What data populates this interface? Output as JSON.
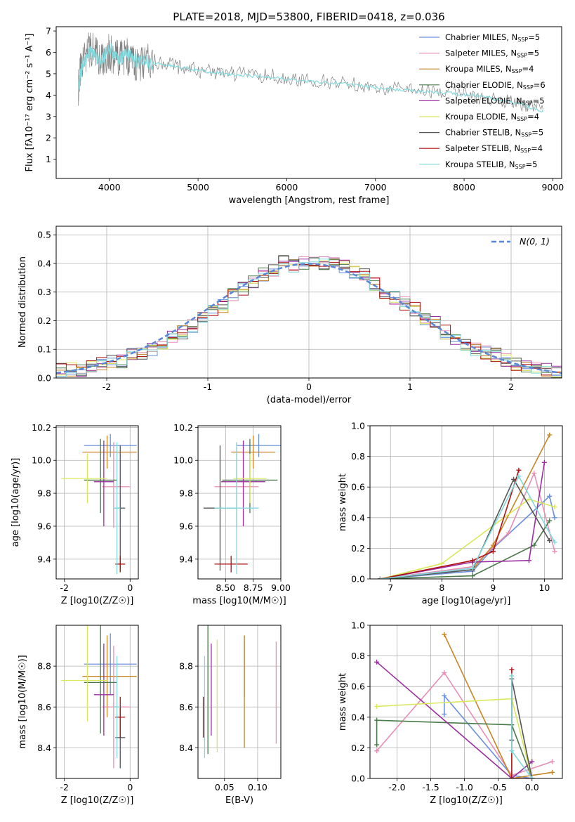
{
  "figure": {
    "title": "PLATE=2018, MJD=53800, FIBERID=0418, z=0.036"
  },
  "legend": {
    "spectrum": [
      {
        "label": "Chabrier MILES, N",
        "sub": "SSP",
        "tail": "=5",
        "color": "#6a8fdc"
      },
      {
        "label": "Salpeter MILES, N",
        "sub": "SSP",
        "tail": "=5",
        "color": "#e88fb5"
      },
      {
        "label": "Kroupa MILES, N",
        "sub": "SSP",
        "tail": "=4",
        "color": "#c58525"
      },
      {
        "label": "Chabrier ELODIE, N",
        "sub": "SSP",
        "tail": "=6",
        "color": "#4a7a4a"
      },
      {
        "label": "Salpeter ELODIE, N",
        "sub": "SSP",
        "tail": "=5",
        "color": "#9a2fa0"
      },
      {
        "label": "Kroupa ELODIE, N",
        "sub": "SSP",
        "tail": "=4",
        "color": "#d9e85a"
      },
      {
        "label": "Chabrier STELIB, N",
        "sub": "SSP",
        "tail": "=5",
        "color": "#555555"
      },
      {
        "label": "Salpeter STELIB, N",
        "sub": "SSP",
        "tail": "=4",
        "color": "#b01010"
      },
      {
        "label": "Kroupa STELIB, N",
        "sub": "SSP",
        "tail": "=5",
        "color": "#7fd8dc"
      }
    ],
    "residual": "N(0, 1)"
  },
  "chart_data": [
    {
      "id": "spectrum",
      "type": "line",
      "xlabel": "wavelength [Angstrom, rest frame]",
      "ylabel": "Flux [fλ10⁻¹⁷ erg cm⁻² s⁻¹ A⁻¹]",
      "xlim": [
        3400,
        9100
      ],
      "ylim": [
        0.1,
        7.2
      ],
      "xticks": [
        4000,
        5000,
        6000,
        7000,
        8000,
        9000
      ],
      "yticks": [
        1,
        2,
        3,
        4,
        5,
        6,
        7
      ],
      "grid": false,
      "legend_position": "top-right",
      "series": [
        {
          "role": "observed",
          "color": "#808080",
          "x": [
            3650,
            3700,
            3800,
            3900,
            4000,
            4100,
            4200,
            4300,
            4500,
            4800,
            5100,
            5400,
            5800,
            6200,
            6600,
            7000,
            7400,
            7800,
            8200,
            8600,
            8900
          ],
          "y": [
            4.4,
            5.8,
            6.2,
            5.6,
            6.0,
            5.7,
            5.8,
            5.4,
            5.6,
            5.3,
            5.1,
            5.0,
            4.9,
            4.7,
            4.6,
            4.4,
            4.2,
            4.1,
            3.9,
            3.6,
            3.3
          ]
        },
        {
          "role": "model",
          "color": "#7fd8dc",
          "x": [
            3650,
            3700,
            3800,
            3900,
            4000,
            4100,
            4200,
            4300,
            4500,
            4800,
            5100,
            5400,
            5800,
            6200,
            6600,
            7000,
            7400,
            7800,
            8200,
            8600,
            8900
          ],
          "y": [
            4.4,
            5.5,
            6.1,
            5.5,
            6.3,
            5.6,
            5.9,
            5.6,
            5.5,
            5.3,
            5.1,
            4.95,
            4.85,
            4.65,
            4.55,
            4.35,
            4.2,
            4.1,
            3.95,
            3.6,
            3.25
          ]
        }
      ]
    },
    {
      "id": "residual",
      "type": "line",
      "xlabel": "(data-model)/error",
      "ylabel": "Normed distribution",
      "xlim": [
        -2.5,
        2.5
      ],
      "ylim": [
        0,
        0.53
      ],
      "xticks": [
        -2,
        -1,
        0,
        1,
        2
      ],
      "yticks": [
        0.0,
        0.1,
        0.2,
        0.3,
        0.4,
        0.5
      ],
      "grid": true,
      "legend_position": "top-right",
      "histogram_bins": [
        -2.5,
        -2.4,
        -2.3,
        -2.2,
        -2.1,
        -2.0,
        -1.9,
        -1.8,
        -1.7,
        -1.6,
        -1.5,
        -1.4,
        -1.3,
        -1.2,
        -1.1,
        -1.0,
        -0.9,
        -0.8,
        -0.7,
        -0.6,
        -0.5,
        -0.4,
        -0.3,
        -0.2,
        -0.1,
        0.0,
        0.1,
        0.2,
        0.3,
        0.4,
        0.5,
        0.6,
        0.7,
        0.8,
        0.9,
        1.0,
        1.1,
        1.2,
        1.3,
        1.4,
        1.5,
        1.6,
        1.7,
        1.8,
        1.9,
        2.0,
        2.1,
        2.2,
        2.3,
        2.4
      ],
      "histogram_values": [
        0.03,
        0.03,
        0.03,
        0.04,
        0.05,
        0.06,
        0.06,
        0.08,
        0.09,
        0.1,
        0.12,
        0.14,
        0.16,
        0.18,
        0.21,
        0.23,
        0.25,
        0.29,
        0.31,
        0.34,
        0.36,
        0.38,
        0.41,
        0.39,
        0.4,
        0.41,
        0.4,
        0.4,
        0.39,
        0.37,
        0.36,
        0.33,
        0.3,
        0.28,
        0.26,
        0.24,
        0.21,
        0.19,
        0.16,
        0.14,
        0.12,
        0.1,
        0.09,
        0.08,
        0.06,
        0.05,
        0.04,
        0.03,
        0.03,
        0.02
      ],
      "gaussian": {
        "mean": 0,
        "sigma": 1
      }
    },
    {
      "id": "age-vs-Z",
      "type": "scatter",
      "xlabel": "Z [log10(Z/Z☉)]",
      "ylabel": "age [log10(age/yr)]",
      "xlim": [
        -2.25,
        0.25
      ],
      "ylim": [
        9.28,
        10.21
      ],
      "xticks": [
        -2,
        0
      ],
      "yticks": [
        9.4,
        9.6,
        9.8,
        10.0,
        10.2
      ],
      "grid": true,
      "points": [
        {
          "color": "#6a8fdc",
          "x": -0.6,
          "xerr": [
            0.8,
            0.8
          ],
          "y": 10.09,
          "yerr": [
            0.07,
            0.07
          ]
        },
        {
          "color": "#c58525",
          "x": -0.7,
          "xerr": [
            0.75,
            0.9
          ],
          "y": 10.05,
          "yerr": [
            0.1,
            0.1
          ]
        },
        {
          "color": "#e88fb5",
          "x": -0.5,
          "xerr": [
            0.35,
            0.5
          ],
          "y": 9.84,
          "yerr": [
            0.25,
            0.27
          ]
        },
        {
          "color": "#4a7a4a",
          "x": -0.9,
          "xerr": [
            0.5,
            0.5
          ],
          "y": 9.88,
          "yerr": [
            0.2,
            0.25
          ]
        },
        {
          "color": "#9a2fa0",
          "x": -0.8,
          "xerr": [
            0.3,
            0.3
          ],
          "y": 9.87,
          "yerr": [
            0.27,
            0.25
          ]
        },
        {
          "color": "#d9e85a",
          "x": -1.3,
          "xerr": [
            0.8,
            0.6
          ],
          "y": 9.89,
          "yerr": [
            0.15,
            0.15
          ]
        },
        {
          "color": "#555555",
          "x": -0.3,
          "xerr": [
            0.15,
            0.15
          ],
          "y": 9.71,
          "yerr": [
            0.38,
            0.38
          ]
        },
        {
          "color": "#b01010",
          "x": -0.3,
          "xerr": [
            0.15,
            0.15
          ],
          "y": 9.37,
          "yerr": [
            0.05,
            0.05
          ]
        },
        {
          "color": "#7fd8dc",
          "x": -0.4,
          "xerr": [
            0.1,
            0.1
          ],
          "y": 9.71,
          "yerr": [
            0.4,
            0.4
          ]
        }
      ]
    },
    {
      "id": "age-vs-mass",
      "type": "scatter",
      "xlabel": "mass [log10(M/M☉)]",
      "ylabel": "",
      "xlim": [
        8.25,
        9.0
      ],
      "ylim": [
        9.28,
        10.21
      ],
      "xticks": [
        8.5,
        8.75,
        9.0
      ],
      "yticks": [
        9.4,
        9.6,
        9.8,
        10.0,
        10.2
      ],
      "grid": true,
      "points": [
        {
          "color": "#6a8fdc",
          "x": 8.8,
          "xerr": [
            0.2,
            0.2
          ],
          "y": 10.09,
          "yerr": [
            0.07,
            0.07
          ]
        },
        {
          "color": "#c58525",
          "x": 8.75,
          "xerr": [
            0.2,
            0.2
          ],
          "y": 10.05,
          "yerr": [
            0.1,
            0.1
          ]
        },
        {
          "color": "#e88fb5",
          "x": 8.6,
          "xerr": [
            0.2,
            0.2
          ],
          "y": 9.84,
          "yerr": [
            0.25,
            0.27
          ]
        },
        {
          "color": "#4a7a4a",
          "x": 8.72,
          "xerr": [
            0.25,
            0.25
          ],
          "y": 9.88,
          "yerr": [
            0.2,
            0.25
          ]
        },
        {
          "color": "#9a2fa0",
          "x": 8.66,
          "xerr": [
            0.2,
            0.2
          ],
          "y": 9.87,
          "yerr": [
            0.27,
            0.25
          ]
        },
        {
          "color": "#d9e85a",
          "x": 8.72,
          "xerr": [
            0.15,
            0.15
          ],
          "y": 9.89,
          "yerr": [
            0.15,
            0.15
          ]
        },
        {
          "color": "#555555",
          "x": 8.45,
          "xerr": [
            0.15,
            0.15
          ],
          "y": 9.71,
          "yerr": [
            0.38,
            0.38
          ]
        },
        {
          "color": "#b01010",
          "x": 8.55,
          "xerr": [
            0.15,
            0.15
          ],
          "y": 9.37,
          "yerr": [
            0.05,
            0.05
          ]
        },
        {
          "color": "#7fd8dc",
          "x": 8.6,
          "xerr": [
            0.2,
            0.2
          ],
          "y": 9.71,
          "yerr": [
            0.4,
            0.4
          ]
        }
      ]
    },
    {
      "id": "weight-vs-age",
      "type": "line",
      "xlabel": "age [log10(age/yr)]",
      "ylabel": "mass weight",
      "xlim": [
        6.6,
        10.35
      ],
      "ylim": [
        0,
        1.0
      ],
      "xticks": [
        7,
        8,
        9,
        10
      ],
      "yticks": [
        0.0,
        0.2,
        0.4,
        0.6,
        0.8,
        1.0
      ],
      "grid": true,
      "series": [
        {
          "color": "#6a8fdc",
          "x": [
            6.8,
            8.6,
            9.0,
            10.1,
            10.2
          ],
          "y": [
            0.0,
            0.05,
            0.2,
            0.54,
            0.4
          ]
        },
        {
          "color": "#e88fb5",
          "x": [
            6.8,
            8.6,
            9.3,
            9.8,
            10.2
          ],
          "y": [
            0.0,
            0.08,
            0.3,
            0.69,
            0.18
          ]
        },
        {
          "color": "#c58525",
          "x": [
            6.8,
            8.6,
            9.0,
            10.1
          ],
          "y": [
            0.0,
            0.06,
            0.22,
            0.94
          ]
        },
        {
          "color": "#4a7a4a",
          "x": [
            6.8,
            8.6,
            9.8,
            10.1
          ],
          "y": [
            0.0,
            0.02,
            0.22,
            0.38
          ]
        },
        {
          "color": "#9a2fa0",
          "x": [
            6.8,
            8.6,
            9.7,
            10.0
          ],
          "y": [
            0.0,
            0.11,
            0.12,
            0.76
          ]
        },
        {
          "color": "#d9e85a",
          "x": [
            6.8,
            8.0,
            9.7,
            10.2
          ],
          "y": [
            0.0,
            0.1,
            0.52,
            0.47
          ]
        },
        {
          "color": "#555555",
          "x": [
            6.8,
            8.6,
            9.4,
            10.1
          ],
          "y": [
            0.0,
            0.06,
            0.65,
            0.25
          ]
        },
        {
          "color": "#b01010",
          "x": [
            6.8,
            8.6,
            9.0,
            9.5
          ],
          "y": [
            0.0,
            0.12,
            0.18,
            0.71
          ]
        },
        {
          "color": "#7fd8dc",
          "x": [
            6.8,
            8.6,
            9.5,
            10.2
          ],
          "y": [
            0.0,
            0.07,
            0.67,
            0.24
          ]
        }
      ]
    },
    {
      "id": "mass-vs-Z",
      "type": "scatter",
      "xlabel": "Z [log10(Z/Z☉)]",
      "ylabel": "mass [log10(M/M☉)]",
      "xlim": [
        -2.25,
        0.25
      ],
      "ylim": [
        8.25,
        9.0
      ],
      "xticks": [
        -2,
        0
      ],
      "yticks": [
        8.4,
        8.6,
        8.8
      ],
      "grid": true,
      "points": [
        {
          "color": "#6a8fdc",
          "x": -0.6,
          "xerr": [
            0.8,
            0.8
          ],
          "y": 8.81,
          "yerr": [
            0.15,
            0.15
          ]
        },
        {
          "color": "#c58525",
          "x": -0.7,
          "xerr": [
            0.75,
            0.9
          ],
          "y": 8.75,
          "yerr": [
            0.2,
            0.2
          ]
        },
        {
          "color": "#e88fb5",
          "x": -0.5,
          "xerr": [
            0.35,
            0.5
          ],
          "y": 8.6,
          "yerr": [
            0.3,
            0.3
          ]
        },
        {
          "color": "#4a7a4a",
          "x": -0.9,
          "xerr": [
            0.5,
            0.5
          ],
          "y": 8.72,
          "yerr": [
            0.25,
            0.4
          ]
        },
        {
          "color": "#9a2fa0",
          "x": -0.8,
          "xerr": [
            0.3,
            0.3
          ],
          "y": 8.66,
          "yerr": [
            0.2,
            0.25
          ]
        },
        {
          "color": "#d9e85a",
          "x": -1.3,
          "xerr": [
            0.8,
            0.6
          ],
          "y": 8.73,
          "yerr": [
            0.2,
            0.35
          ]
        },
        {
          "color": "#555555",
          "x": -0.3,
          "xerr": [
            0.15,
            0.15
          ],
          "y": 8.45,
          "yerr": [
            0.15,
            0.15
          ]
        },
        {
          "color": "#b01010",
          "x": -0.3,
          "xerr": [
            0.15,
            0.15
          ],
          "y": 8.55,
          "yerr": [
            0.1,
            0.1
          ]
        },
        {
          "color": "#7fd8dc",
          "x": -0.4,
          "xerr": [
            0.1,
            0.1
          ],
          "y": 8.6,
          "yerr": [
            0.25,
            0.25
          ]
        }
      ]
    },
    {
      "id": "mass-vs-EBV",
      "type": "scatter",
      "xlabel": "E(B-V)",
      "ylabel": "",
      "xlim": [
        0.01,
        0.135
      ],
      "ylim": [
        8.25,
        9.0
      ],
      "xticks": [
        0.05,
        0.1
      ],
      "yticks": [
        8.4,
        8.6,
        8.8
      ],
      "grid": true,
      "points": [
        {
          "color": "#b01010",
          "x": 0.018,
          "y": 8.55,
          "yerr": [
            0.1,
            0.1
          ]
        },
        {
          "color": "#7fd8dc",
          "x": 0.02,
          "y": 8.6,
          "yerr": [
            0.25,
            0.25
          ]
        },
        {
          "color": "#4a7a4a",
          "x": 0.025,
          "y": 8.72,
          "yerr": [
            0.35,
            0.3
          ]
        },
        {
          "color": "#9a2fa0",
          "x": 0.03,
          "y": 8.66,
          "yerr": [
            0.2,
            0.25
          ]
        },
        {
          "color": "#d9e85a",
          "x": 0.039,
          "y": 8.73,
          "yerr": [
            0.35,
            0.2
          ]
        },
        {
          "color": "#6a8fdc",
          "x": 0.08,
          "y": 8.8,
          "yerr": [
            0.15,
            0.15
          ]
        },
        {
          "color": "#c58525",
          "x": 0.08,
          "y": 8.7,
          "yerr": [
            0.3,
            0.25
          ]
        },
        {
          "color": "#e88fb5",
          "x": 0.128,
          "y": 8.67,
          "yerr": [
            0.25,
            0.25
          ]
        }
      ]
    },
    {
      "id": "weight-vs-Z",
      "type": "line",
      "xlabel": "Z [log10(Z/Z☉)]",
      "ylabel": "mass weight",
      "xlim": [
        -2.4,
        0.45
      ],
      "ylim": [
        0,
        1.0
      ],
      "xticks": [
        -2.0,
        -1.5,
        -1.0,
        -0.5,
        0.0
      ],
      "yticks": [
        0.0,
        0.2,
        0.4,
        0.6,
        0.8,
        1.0
      ],
      "grid": true,
      "series": [
        {
          "color": "#6a8fdc",
          "x": [
            -1.3,
            -1.3,
            -0.3,
            0.0
          ],
          "y": [
            0.42,
            0.54,
            0.02,
            0.0
          ]
        },
        {
          "color": "#e88fb5",
          "x": [
            -2.3,
            -1.3,
            -0.3,
            0.3
          ],
          "y": [
            0.18,
            0.69,
            0.02,
            0.11
          ]
        },
        {
          "color": "#c58525",
          "x": [
            -1.3,
            -0.3,
            0.3
          ],
          "y": [
            0.94,
            0.0,
            0.04
          ]
        },
        {
          "color": "#4a7a4a",
          "x": [
            -2.3,
            -2.3,
            -0.3,
            0.0
          ],
          "y": [
            0.22,
            0.38,
            0.35,
            0.0
          ]
        },
        {
          "color": "#9a2fa0",
          "x": [
            -2.3,
            -0.3,
            0.0
          ],
          "y": [
            0.76,
            0.0,
            0.11
          ]
        },
        {
          "color": "#d9e85a",
          "x": [
            -2.3,
            -0.3,
            0.0
          ],
          "y": [
            0.47,
            0.52,
            0.0
          ]
        },
        {
          "color": "#555555",
          "x": [
            -0.3,
            -0.3,
            0.0
          ],
          "y": [
            0.25,
            0.65,
            0.0
          ]
        },
        {
          "color": "#b01010",
          "x": [
            -0.3,
            -0.3,
            0.0
          ],
          "y": [
            0.71,
            0.0,
            0.0
          ]
        },
        {
          "color": "#7fd8dc",
          "x": [
            -0.3,
            -0.3,
            0.0
          ],
          "y": [
            0.67,
            0.18,
            0.0
          ]
        }
      ]
    }
  ]
}
